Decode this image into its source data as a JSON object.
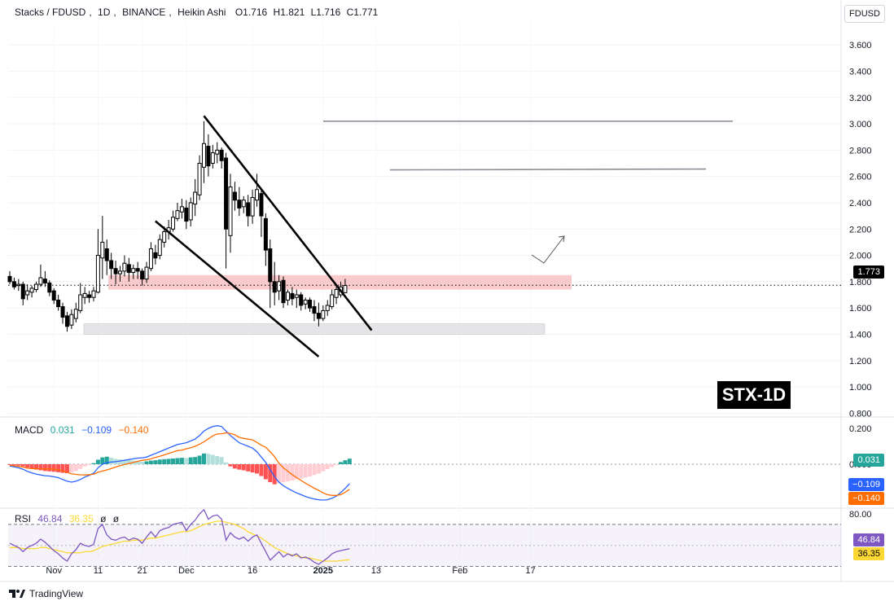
{
  "header": {
    "pair": "Stacks / FDUSD",
    "interval": "1D",
    "exchange": "BINANCE",
    "chart_style": "Heikin Ashi",
    "ohlc": [
      "O1.716",
      "H1.821",
      "L1.716",
      "C1.771"
    ]
  },
  "currency_button": "FDUSD",
  "stx_label": "STX-1D",
  "footer_brand": "TradingView",
  "badges": {
    "price": "1.773",
    "macd_hist": "0.031",
    "macd_line": "−0.109",
    "macd_signal": "−0.140",
    "rsi_main": "46.84",
    "rsi_ma": "36.35"
  },
  "macd_legend": {
    "name": "MACD",
    "v1": "0.031",
    "v2": "−0.109",
    "v3": "−0.140"
  },
  "rsi_legend": {
    "name": "RSI",
    "v1": "46.84",
    "v2": "36.35",
    "v3": "ø",
    "v4": "ø"
  },
  "colors": {
    "up": "#26a69a",
    "down": "#ef5350",
    "macd_line": "#2962ff",
    "signal_line": "#ff6d00",
    "rsi_line": "#7e57c2",
    "rsi_ma": "#fdd835",
    "zone_red": "#f7b9bb",
    "zone_grey": "#e5e5e8"
  },
  "chart_data": {
    "type": "candlestick",
    "chart_style": "Heikin Ashi",
    "price_ticks": [
      "3.600",
      "3.400",
      "3.200",
      "3.000",
      "2.800",
      "2.600",
      "2.400",
      "2.200",
      "2.000",
      "1.800",
      "1.600",
      "1.400",
      "1.200",
      "1.000",
      "0.800"
    ],
    "macd_ticks": [
      "0.200",
      "0.000"
    ],
    "rsi_ticks": [
      "80.00"
    ],
    "x_tick_labels": [
      "Nov",
      "11",
      "21",
      "Dec",
      "16",
      "2025",
      "13",
      "Feb",
      "17"
    ],
    "start_date": "2024-10-22",
    "candles": [
      {
        "date": "2024-10-22",
        "o": 1.84,
        "h": 1.88,
        "l": 1.78,
        "c": 1.8
      },
      {
        "date": "2024-10-23",
        "o": 1.8,
        "h": 1.83,
        "l": 1.74,
        "c": 1.76
      },
      {
        "date": "2024-10-24",
        "o": 1.77,
        "h": 1.82,
        "l": 1.73,
        "c": 1.78
      },
      {
        "date": "2024-10-25",
        "o": 1.78,
        "h": 1.8,
        "l": 1.62,
        "c": 1.67
      },
      {
        "date": "2024-10-26",
        "o": 1.7,
        "h": 1.78,
        "l": 1.66,
        "c": 1.73
      },
      {
        "date": "2024-10-27",
        "o": 1.72,
        "h": 1.77,
        "l": 1.68,
        "c": 1.75
      },
      {
        "date": "2024-10-28",
        "o": 1.74,
        "h": 1.8,
        "l": 1.72,
        "c": 1.78
      },
      {
        "date": "2024-10-29",
        "o": 1.78,
        "h": 1.93,
        "l": 1.76,
        "c": 1.83
      },
      {
        "date": "2024-10-30",
        "o": 1.82,
        "h": 1.88,
        "l": 1.76,
        "c": 1.79
      },
      {
        "date": "2024-10-31",
        "o": 1.79,
        "h": 1.81,
        "l": 1.69,
        "c": 1.72
      },
      {
        "date": "2024-11-01",
        "o": 1.73,
        "h": 1.75,
        "l": 1.63,
        "c": 1.66
      },
      {
        "date": "2024-11-02",
        "o": 1.66,
        "h": 1.7,
        "l": 1.58,
        "c": 1.61
      },
      {
        "date": "2024-11-03",
        "o": 1.61,
        "h": 1.64,
        "l": 1.48,
        "c": 1.53
      },
      {
        "date": "2024-11-04",
        "o": 1.54,
        "h": 1.57,
        "l": 1.42,
        "c": 1.46
      },
      {
        "date": "2024-11-05",
        "o": 1.47,
        "h": 1.59,
        "l": 1.44,
        "c": 1.55
      },
      {
        "date": "2024-11-06",
        "o": 1.52,
        "h": 1.64,
        "l": 1.49,
        "c": 1.59
      },
      {
        "date": "2024-11-07",
        "o": 1.58,
        "h": 1.79,
        "l": 1.56,
        "c": 1.7
      },
      {
        "date": "2024-11-08",
        "o": 1.68,
        "h": 1.76,
        "l": 1.63,
        "c": 1.71
      },
      {
        "date": "2024-11-09",
        "o": 1.7,
        "h": 1.73,
        "l": 1.64,
        "c": 1.68
      },
      {
        "date": "2024-11-10",
        "o": 1.68,
        "h": 1.76,
        "l": 1.65,
        "c": 1.73
      },
      {
        "date": "2024-11-11",
        "o": 1.72,
        "h": 2.2,
        "l": 1.71,
        "c": 2.0
      },
      {
        "date": "2024-11-12",
        "o": 1.98,
        "h": 2.3,
        "l": 1.82,
        "c": 2.1
      },
      {
        "date": "2024-11-13",
        "o": 2.05,
        "h": 2.12,
        "l": 1.85,
        "c": 1.96
      },
      {
        "date": "2024-11-14",
        "o": 1.96,
        "h": 2.02,
        "l": 1.82,
        "c": 1.9
      },
      {
        "date": "2024-11-15",
        "o": 1.9,
        "h": 1.96,
        "l": 1.78,
        "c": 1.86
      },
      {
        "date": "2024-11-16",
        "o": 1.86,
        "h": 1.92,
        "l": 1.8,
        "c": 1.88
      },
      {
        "date": "2024-11-17",
        "o": 1.88,
        "h": 2.0,
        "l": 1.84,
        "c": 1.94
      },
      {
        "date": "2024-11-18",
        "o": 1.93,
        "h": 1.98,
        "l": 1.8,
        "c": 1.87
      },
      {
        "date": "2024-11-19",
        "o": 1.87,
        "h": 1.93,
        "l": 1.82,
        "c": 1.9
      },
      {
        "date": "2024-11-20",
        "o": 1.9,
        "h": 1.95,
        "l": 1.82,
        "c": 1.88
      },
      {
        "date": "2024-11-21",
        "o": 1.88,
        "h": 1.9,
        "l": 1.77,
        "c": 1.82
      },
      {
        "date": "2024-11-22",
        "o": 1.82,
        "h": 1.95,
        "l": 1.79,
        "c": 1.91
      },
      {
        "date": "2024-11-23",
        "o": 1.9,
        "h": 2.1,
        "l": 1.88,
        "c": 2.05
      },
      {
        "date": "2024-11-24",
        "o": 2.02,
        "h": 2.08,
        "l": 1.93,
        "c": 1.98
      },
      {
        "date": "2024-11-25",
        "o": 2.0,
        "h": 2.16,
        "l": 1.97,
        "c": 2.12
      },
      {
        "date": "2024-11-26",
        "o": 2.1,
        "h": 2.22,
        "l": 2.06,
        "c": 2.18
      },
      {
        "date": "2024-11-27",
        "o": 2.18,
        "h": 2.27,
        "l": 2.12,
        "c": 2.21
      },
      {
        "date": "2024-11-28",
        "o": 2.2,
        "h": 2.34,
        "l": 2.18,
        "c": 2.29
      },
      {
        "date": "2024-11-29",
        "o": 2.28,
        "h": 2.4,
        "l": 2.26,
        "c": 2.34
      },
      {
        "date": "2024-11-30",
        "o": 2.33,
        "h": 2.43,
        "l": 2.28,
        "c": 2.37
      },
      {
        "date": "2024-12-01",
        "o": 2.36,
        "h": 2.42,
        "l": 2.2,
        "c": 2.26
      },
      {
        "date": "2024-12-02",
        "o": 2.27,
        "h": 2.44,
        "l": 2.22,
        "c": 2.4
      },
      {
        "date": "2024-12-03",
        "o": 2.39,
        "h": 2.58,
        "l": 2.3,
        "c": 2.48
      },
      {
        "date": "2024-12-04",
        "o": 2.46,
        "h": 2.76,
        "l": 2.42,
        "c": 2.7
      },
      {
        "date": "2024-12-05",
        "o": 2.67,
        "h": 3.02,
        "l": 2.55,
        "c": 2.85
      },
      {
        "date": "2024-12-06",
        "o": 2.83,
        "h": 2.92,
        "l": 2.6,
        "c": 2.68
      },
      {
        "date": "2024-12-07",
        "o": 2.7,
        "h": 2.84,
        "l": 2.66,
        "c": 2.78
      },
      {
        "date": "2024-12-08",
        "o": 2.77,
        "h": 2.86,
        "l": 2.7,
        "c": 2.8
      },
      {
        "date": "2024-12-09",
        "o": 2.8,
        "h": 2.82,
        "l": 2.66,
        "c": 2.72
      },
      {
        "date": "2024-12-10",
        "o": 2.74,
        "h": 2.78,
        "l": 1.9,
        "c": 2.2
      },
      {
        "date": "2024-12-11",
        "o": 2.15,
        "h": 2.62,
        "l": 2.02,
        "c": 2.52
      },
      {
        "date": "2024-12-12",
        "o": 2.48,
        "h": 2.56,
        "l": 2.34,
        "c": 2.42
      },
      {
        "date": "2024-12-13",
        "o": 2.42,
        "h": 2.52,
        "l": 2.3,
        "c": 2.36
      },
      {
        "date": "2024-12-14",
        "o": 2.37,
        "h": 2.45,
        "l": 2.32,
        "c": 2.42
      },
      {
        "date": "2024-12-15",
        "o": 2.4,
        "h": 2.46,
        "l": 2.22,
        "c": 2.3
      },
      {
        "date": "2024-12-16",
        "o": 2.3,
        "h": 2.5,
        "l": 2.24,
        "c": 2.44
      },
      {
        "date": "2024-12-17",
        "o": 2.42,
        "h": 2.62,
        "l": 2.37,
        "c": 2.5
      },
      {
        "date": "2024-12-18",
        "o": 2.47,
        "h": 2.5,
        "l": 2.14,
        "c": 2.3
      },
      {
        "date": "2024-12-19",
        "o": 2.28,
        "h": 2.32,
        "l": 1.92,
        "c": 2.04
      },
      {
        "date": "2024-12-20",
        "o": 2.05,
        "h": 2.12,
        "l": 1.6,
        "c": 1.8
      },
      {
        "date": "2024-12-21",
        "o": 1.8,
        "h": 1.95,
        "l": 1.62,
        "c": 1.72
      },
      {
        "date": "2024-12-22",
        "o": 1.73,
        "h": 1.85,
        "l": 1.66,
        "c": 1.8
      },
      {
        "date": "2024-12-23",
        "o": 1.81,
        "h": 1.84,
        "l": 1.6,
        "c": 1.64
      },
      {
        "date": "2024-12-24",
        "o": 1.66,
        "h": 1.74,
        "l": 1.62,
        "c": 1.72
      },
      {
        "date": "2024-12-25",
        "o": 1.71,
        "h": 1.76,
        "l": 1.62,
        "c": 1.67
      },
      {
        "date": "2024-12-26",
        "o": 1.68,
        "h": 1.74,
        "l": 1.6,
        "c": 1.7
      },
      {
        "date": "2024-12-27",
        "o": 1.7,
        "h": 1.72,
        "l": 1.58,
        "c": 1.62
      },
      {
        "date": "2024-12-28",
        "o": 1.63,
        "h": 1.68,
        "l": 1.59,
        "c": 1.66
      },
      {
        "date": "2024-12-29",
        "o": 1.66,
        "h": 1.68,
        "l": 1.57,
        "c": 1.6
      },
      {
        "date": "2024-12-30",
        "o": 1.61,
        "h": 1.66,
        "l": 1.5,
        "c": 1.56
      },
      {
        "date": "2024-12-31",
        "o": 1.56,
        "h": 1.64,
        "l": 1.46,
        "c": 1.52
      },
      {
        "date": "2025-01-01",
        "o": 1.52,
        "h": 1.62,
        "l": 1.5,
        "c": 1.58
      },
      {
        "date": "2025-01-02",
        "o": 1.58,
        "h": 1.66,
        "l": 1.54,
        "c": 1.62
      },
      {
        "date": "2025-01-03",
        "o": 1.61,
        "h": 1.74,
        "l": 1.59,
        "c": 1.7
      },
      {
        "date": "2025-01-04",
        "o": 1.68,
        "h": 1.78,
        "l": 1.63,
        "c": 1.74
      },
      {
        "date": "2025-01-05",
        "o": 1.7,
        "h": 1.8,
        "l": 1.68,
        "c": 1.76
      },
      {
        "date": "2025-01-06",
        "o": 1.716,
        "h": 1.821,
        "l": 1.716,
        "c": 1.771
      }
    ],
    "macd": {
      "histogram": [
        -0.004,
        -0.006,
        -0.008,
        -0.012,
        -0.018,
        -0.024,
        -0.03,
        -0.034,
        -0.038,
        -0.04,
        -0.042,
        -0.045,
        -0.048,
        -0.05,
        -0.046,
        -0.038,
        -0.026,
        -0.012,
        -0.004,
        0.006,
        0.025,
        0.038,
        0.042,
        0.036,
        0.03,
        0.026,
        0.024,
        0.022,
        0.02,
        0.018,
        0.014,
        0.016,
        0.02,
        0.022,
        0.026,
        0.028,
        0.03,
        0.032,
        0.034,
        0.036,
        0.034,
        0.038,
        0.04,
        0.048,
        0.06,
        0.058,
        0.052,
        0.046,
        0.04,
        0.01,
        -0.012,
        -0.024,
        -0.03,
        -0.034,
        -0.04,
        -0.046,
        -0.052,
        -0.066,
        -0.084,
        -0.1,
        -0.112,
        -0.106,
        -0.1,
        -0.096,
        -0.09,
        -0.085,
        -0.08,
        -0.074,
        -0.068,
        -0.06,
        -0.052,
        -0.04,
        -0.028,
        -0.016,
        -0.004,
        0.012,
        0.022,
        0.031
      ],
      "macd_line": [
        -0.01,
        -0.015,
        -0.02,
        -0.028,
        -0.04,
        -0.048,
        -0.055,
        -0.06,
        -0.064,
        -0.066,
        -0.07,
        -0.075,
        -0.085,
        -0.095,
        -0.1,
        -0.095,
        -0.085,
        -0.072,
        -0.062,
        -0.05,
        -0.02,
        0,
        0.01,
        0.012,
        0.014,
        0.018,
        0.022,
        0.026,
        0.03,
        0.034,
        0.036,
        0.04,
        0.05,
        0.06,
        0.07,
        0.08,
        0.09,
        0.1,
        0.11,
        0.115,
        0.12,
        0.13,
        0.14,
        0.16,
        0.185,
        0.2,
        0.21,
        0.215,
        0.21,
        0.185,
        0.16,
        0.14,
        0.12,
        0.11,
        0.1,
        0.09,
        0.07,
        0.04,
        0.01,
        -0.03,
        -0.07,
        -0.1,
        -0.12,
        -0.135,
        -0.148,
        -0.16,
        -0.17,
        -0.18,
        -0.188,
        -0.194,
        -0.198,
        -0.2,
        -0.198,
        -0.19,
        -0.178,
        -0.158,
        -0.135,
        -0.109
      ],
      "signal_line": [
        -0.006,
        -0.009,
        -0.012,
        -0.016,
        -0.022,
        -0.024,
        -0.025,
        -0.026,
        -0.026,
        -0.026,
        -0.028,
        -0.03,
        -0.037,
        -0.045,
        -0.054,
        -0.057,
        -0.059,
        -0.06,
        -0.058,
        -0.056,
        -0.045,
        -0.038,
        -0.032,
        -0.024,
        -0.016,
        -0.008,
        -0.002,
        0.004,
        0.01,
        0.016,
        0.022,
        0.024,
        0.03,
        0.038,
        0.044,
        0.052,
        0.06,
        0.068,
        0.076,
        0.079,
        0.086,
        0.092,
        0.1,
        0.112,
        0.125,
        0.142,
        0.158,
        0.169,
        0.17,
        0.175,
        0.172,
        0.164,
        0.15,
        0.144,
        0.14,
        0.136,
        0.122,
        0.106,
        0.094,
        0.07,
        0.042,
        0.006,
        -0.02,
        -0.039,
        -0.058,
        -0.075,
        -0.09,
        -0.106,
        -0.12,
        -0.134,
        -0.146,
        -0.16,
        -0.17,
        -0.174,
        -0.174,
        -0.17,
        -0.157,
        -0.14
      ]
    },
    "rsi": {
      "rsi_line": [
        52,
        50,
        48,
        44,
        48,
        50,
        52,
        56,
        53,
        49,
        45,
        42,
        38,
        35,
        42,
        46,
        52,
        50,
        49,
        51,
        66,
        70,
        60,
        56,
        55,
        57,
        58,
        55,
        57,
        56,
        52,
        58,
        63,
        58,
        64,
        66,
        67,
        70,
        71,
        72,
        64,
        70,
        74,
        80,
        84,
        75,
        78,
        79,
        75,
        55,
        62,
        58,
        56,
        58,
        54,
        58,
        60,
        52,
        44,
        36,
        40,
        44,
        39,
        42,
        40,
        42,
        38,
        39,
        37,
        34,
        32,
        35,
        38,
        42,
        44,
        45,
        46,
        46.84
      ],
      "ma_line": [
        48,
        48,
        48,
        47,
        47,
        47,
        47,
        48,
        48,
        47,
        46,
        45,
        44,
        43,
        43,
        43,
        43,
        44,
        44,
        45,
        47,
        49,
        50,
        51,
        52,
        53,
        54,
        54,
        55,
        55,
        55,
        56,
        57,
        57,
        58,
        59,
        60,
        61,
        62,
        63,
        63,
        64,
        66,
        68,
        70,
        71,
        72,
        73,
        73,
        72,
        71,
        70,
        68,
        66,
        63,
        61,
        59,
        57,
        54,
        51,
        48,
        46,
        44,
        42,
        41,
        40,
        39,
        38,
        38,
        37,
        36,
        35,
        35,
        35,
        35,
        35.5,
        36,
        36.35
      ]
    },
    "annotations": {
      "support_zone_red": [
        1.74,
        1.85
      ],
      "support_zone_grey": [
        1.4,
        1.48
      ],
      "horizontal_levels": [
        3.02,
        2.65
      ],
      "current_price": 1.773,
      "descending_channel_upper": [
        [
          "2024-12-05",
          3.06
        ],
        [
          "2025-01-12",
          1.43
        ]
      ],
      "descending_channel_lower": [
        [
          "2024-11-24",
          2.26
        ],
        [
          "2024-12-31",
          1.23
        ]
      ]
    }
  }
}
